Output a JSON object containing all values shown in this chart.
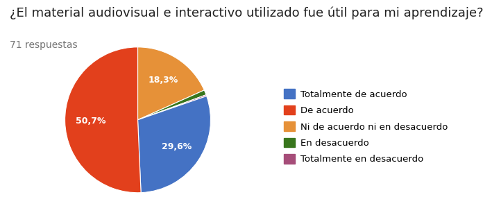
{
  "title": "¿El material audiovisual e interactivo utilizado fue útil para mi aprendizaje?",
  "subtitle": "71 respuestas",
  "labels": [
    "Totalmente de acuerdo",
    "De acuerdo",
    "Ni de acuerdo ni en desacuerdo",
    "En desacuerdo",
    "Totalmente en desacuerdo"
  ],
  "values": [
    29.6,
    50.7,
    18.3,
    1.1,
    0.3
  ],
  "colors": [
    "#4472c4",
    "#e2401c",
    "#e69138",
    "#38761d",
    "#a64d79"
  ],
  "pie_order_values": [
    18.3,
    1.1,
    0.3,
    29.6,
    50.7
  ],
  "pie_order_colors": [
    "#e69138",
    "#38761d",
    "#a64d79",
    "#4472c4",
    "#e2401c"
  ],
  "pie_order_pct": [
    "18,3%",
    "",
    "",
    "29,6%",
    "50,7%"
  ],
  "title_fontsize": 13,
  "subtitle_fontsize": 10,
  "legend_fontsize": 9.5
}
